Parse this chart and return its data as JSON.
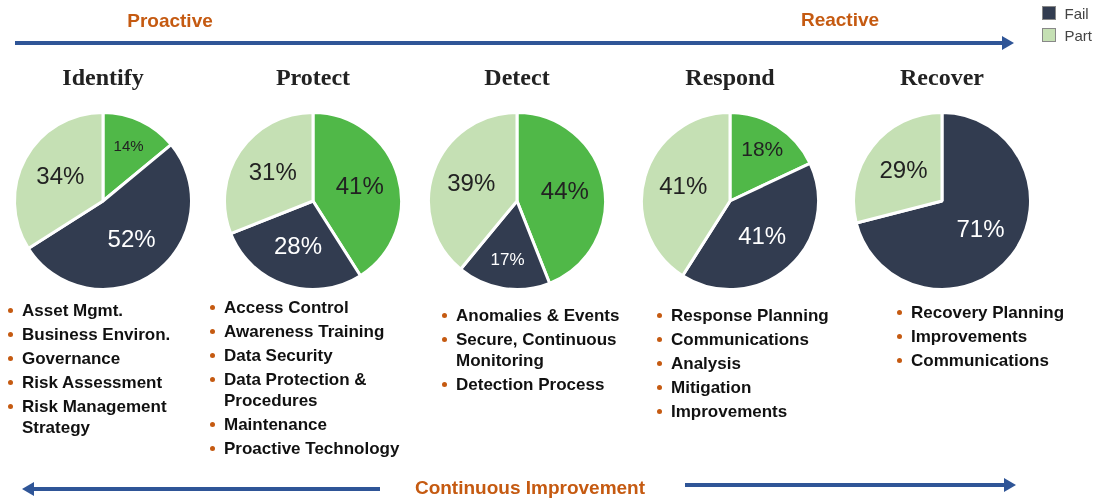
{
  "chart_data": [
    {
      "type": "pie",
      "title": "Identify",
      "legend": "top right",
      "categories": [
        null,
        "Fail",
        "Part"
      ],
      "values": [
        14,
        52,
        34
      ],
      "colors": [
        "#50b848",
        "#323c50",
        "#c5e0b4"
      ],
      "value_labels": [
        "14%",
        "52%",
        "34%"
      ],
      "annotations": [
        "Asset Mgmt.",
        "Business Environ.",
        "Governance",
        "Risk Assessment",
        "Risk Management Strategy"
      ]
    },
    {
      "type": "pie",
      "title": "Protect",
      "categories": [
        null,
        null,
        null
      ],
      "values": [
        41,
        28,
        31
      ],
      "colors": [
        "#50b848",
        "#323c50",
        "#c5e0b4"
      ],
      "value_labels": [
        "41%",
        "28%",
        "31%"
      ],
      "annotations": [
        "Access Control",
        "Awareness Training",
        "Data Security",
        "Data Protection & Procedures",
        "Maintenance",
        "Proactive Technology"
      ]
    },
    {
      "type": "pie",
      "title": "Detect",
      "categories": [
        null,
        null,
        null
      ],
      "values": [
        44,
        17,
        39
      ],
      "colors": [
        "#50b848",
        "#323c50",
        "#c5e0b4"
      ],
      "value_labels": [
        "44%",
        "17%",
        "39%"
      ],
      "annotations": [
        "Anomalies & Events",
        "Secure, Continuous Monitoring",
        "Detection Process"
      ]
    },
    {
      "type": "pie",
      "title": "Respond",
      "categories": [
        null,
        null,
        null
      ],
      "values": [
        18,
        41,
        41
      ],
      "colors": [
        "#50b848",
        "#323c50",
        "#c5e0b4"
      ],
      "value_labels": [
        "18%",
        "41%",
        "41%"
      ],
      "annotations": [
        "Response Planning",
        "Communications",
        "Analysis",
        "Mitigation",
        "Improvements"
      ]
    },
    {
      "type": "pie",
      "title": "Recover",
      "categories": [
        null,
        null,
        null
      ],
      "values": [
        null,
        71,
        29
      ],
      "colors": [
        "#50b848",
        "#323c50",
        "#c5e0b4"
      ],
      "value_labels": [
        null,
        "71%",
        "29%"
      ],
      "annotations": [
        "Recovery Planning",
        "Improvements",
        "Communications"
      ]
    },
    {
      "type": "other",
      "annotations": [
        "Proactive",
        "Reactive",
        "Continuous Improvement"
      ]
    }
  ]
}
